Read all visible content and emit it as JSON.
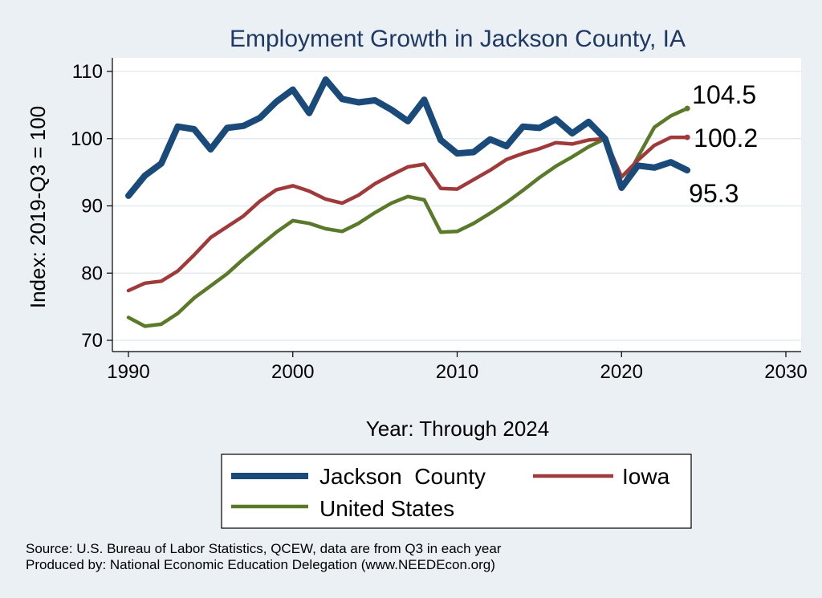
{
  "chart_data": {
    "type": "line",
    "title": "Employment Growth in Jackson County, IA",
    "xlabel": "Year: Through 2024",
    "ylabel": "Index: 2019-Q3 = 100",
    "xlim": [
      1990,
      2030
    ],
    "ylim": [
      68,
      111
    ],
    "x_ticks": [
      1990,
      2000,
      2010,
      2020,
      2030
    ],
    "y_ticks": [
      70,
      80,
      90,
      100,
      110
    ],
    "grid": true,
    "legend_position": "bottom",
    "x": [
      1990,
      1991,
      1992,
      1993,
      1994,
      1995,
      1996,
      1997,
      1998,
      1999,
      2000,
      2001,
      2002,
      2003,
      2004,
      2005,
      2006,
      2007,
      2008,
      2009,
      2010,
      2011,
      2012,
      2013,
      2014,
      2015,
      2016,
      2017,
      2018,
      2019,
      2020,
      2021,
      2022,
      2023,
      2024
    ],
    "series": [
      {
        "name": "Jackson  County",
        "color": "#1a4a7a",
        "width": 8,
        "end_label": "95.3",
        "values": [
          91.5,
          94.5,
          96.3,
          101.8,
          101.4,
          98.4,
          101.6,
          101.9,
          103.1,
          105.5,
          107.3,
          103.8,
          108.8,
          105.9,
          105.4,
          105.7,
          104.3,
          102.6,
          105.8,
          99.8,
          97.8,
          98.0,
          99.9,
          98.9,
          101.8,
          101.6,
          102.9,
          100.8,
          102.5,
          100.0,
          92.7,
          96.0,
          95.7,
          96.5,
          95.3
        ]
      },
      {
        "name": "Iowa",
        "color": "#a03a3a",
        "width": 4.5,
        "end_label": "100.2",
        "values": [
          77.4,
          78.5,
          78.8,
          80.3,
          82.7,
          85.3,
          86.9,
          88.5,
          90.7,
          92.4,
          93.0,
          92.2,
          91.0,
          90.4,
          91.6,
          93.3,
          94.6,
          95.8,
          96.2,
          92.6,
          92.5,
          93.9,
          95.3,
          96.9,
          97.8,
          98.5,
          99.4,
          99.2,
          99.8,
          100.0,
          94.3,
          96.8,
          99.0,
          100.2,
          100.2
        ]
      },
      {
        "name": "United States",
        "color": "#5a7a2a",
        "width": 4.5,
        "end_label": "104.5",
        "values": [
          73.4,
          72.1,
          72.4,
          74.0,
          76.3,
          78.1,
          79.9,
          82.1,
          84.1,
          86.1,
          87.8,
          87.4,
          86.6,
          86.2,
          87.4,
          89.0,
          90.4,
          91.4,
          90.9,
          86.1,
          86.2,
          87.4,
          88.9,
          90.5,
          92.3,
          94.2,
          95.9,
          97.3,
          98.8,
          100.0,
          92.7,
          97.3,
          101.7,
          103.4,
          104.5
        ]
      }
    ],
    "source_lines": [
      "Source: U.S. Bureau of Labor Statistics, QCEW, data are from Q3 in each year",
      "Produced by: National Economic Education Delegation (www.NEEDEcon.org)"
    ]
  }
}
